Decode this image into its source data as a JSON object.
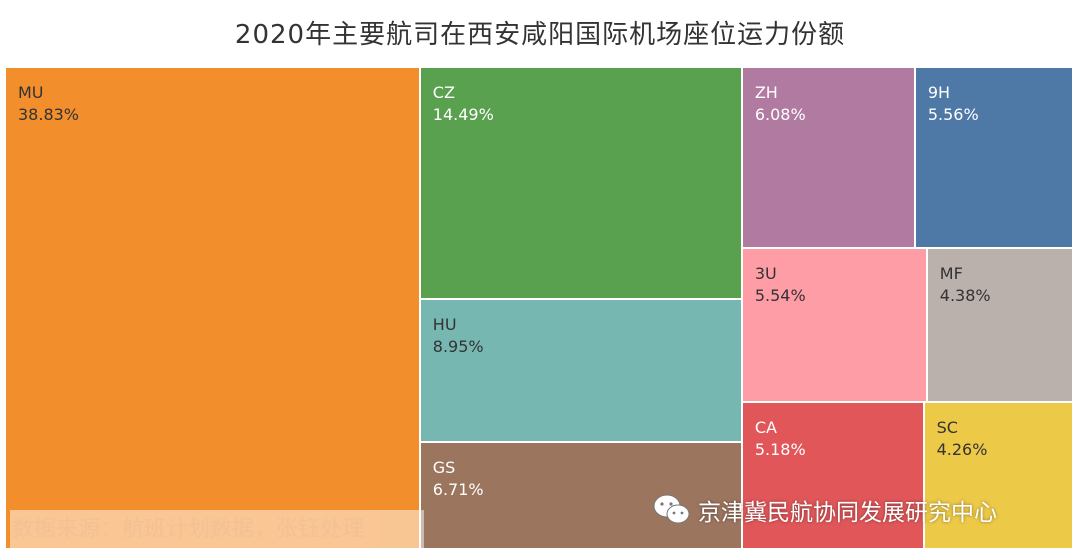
{
  "chart_data": {
    "type": "treemap",
    "title": "2020年主要航司在西安咸阳国际机场座位运力份额",
    "items": [
      {
        "label": "MU",
        "value": 38.83,
        "value_text": "38.83%",
        "color": "#f28e2b",
        "text_color": "#333333"
      },
      {
        "label": "CZ",
        "value": 14.49,
        "value_text": "14.49%",
        "color": "#59a14f",
        "text_color": "#ffffff"
      },
      {
        "label": "HU",
        "value": 8.95,
        "value_text": "8.95%",
        "color": "#76b7b2",
        "text_color": "#333333"
      },
      {
        "label": "GS",
        "value": 6.71,
        "value_text": "6.71%",
        "color": "#9c755f",
        "text_color": "#ffffff"
      },
      {
        "label": "ZH",
        "value": 6.08,
        "value_text": "6.08%",
        "color": "#b07aa1",
        "text_color": "#ffffff"
      },
      {
        "label": "9H",
        "value": 5.56,
        "value_text": "5.56%",
        "color": "#4e79a7",
        "text_color": "#ffffff"
      },
      {
        "label": "3U",
        "value": 5.54,
        "value_text": "5.54%",
        "color": "#ff9da7",
        "text_color": "#333333"
      },
      {
        "label": "MF",
        "value": 4.38,
        "value_text": "4.38%",
        "color": "#bab0ac",
        "text_color": "#333333"
      },
      {
        "label": "CA",
        "value": 5.18,
        "value_text": "5.18%",
        "color": "#e15759",
        "text_color": "#ffffff"
      },
      {
        "label": "SC",
        "value": 4.26,
        "value_text": "4.26%",
        "color": "#edc948",
        "text_color": "#333333"
      }
    ]
  },
  "source_note": "数据来源：航班计划数据，张钰处理",
  "brand": {
    "icon": "wechat-icon",
    "text": "京津冀民航协同发展研究中心"
  }
}
